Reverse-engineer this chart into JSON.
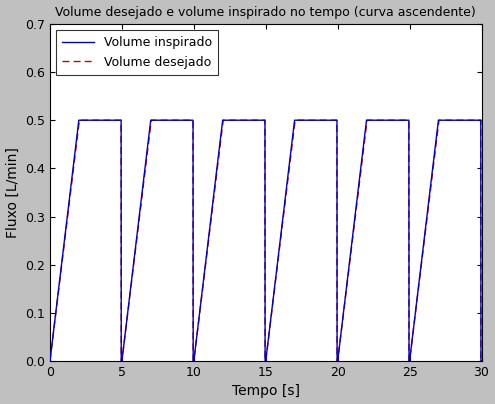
{
  "title": "Volume desejado e volume inspirado no tempo (curva ascendente)",
  "xlabel": "Tempo [s]",
  "ylabel": "Fluxo [L/min]",
  "xlim": [
    0,
    30
  ],
  "ylim": [
    0,
    0.7
  ],
  "yticks": [
    0.0,
    0.1,
    0.2,
    0.3,
    0.4,
    0.5,
    0.6,
    0.7
  ],
  "xticks": [
    0,
    5,
    10,
    15,
    20,
    25,
    30
  ],
  "legend1": "Volume inspirado",
  "legend2": "Volume desejado",
  "line1_color": "#0000cc",
  "line2_color": "#cc0000",
  "background_color": "#c0c0c0",
  "plot_bg_color": "#ffffff",
  "period": 5.0,
  "rise_duration": 2.0,
  "plateau_value": 0.5,
  "total_time": 30.0,
  "dt": 0.005
}
